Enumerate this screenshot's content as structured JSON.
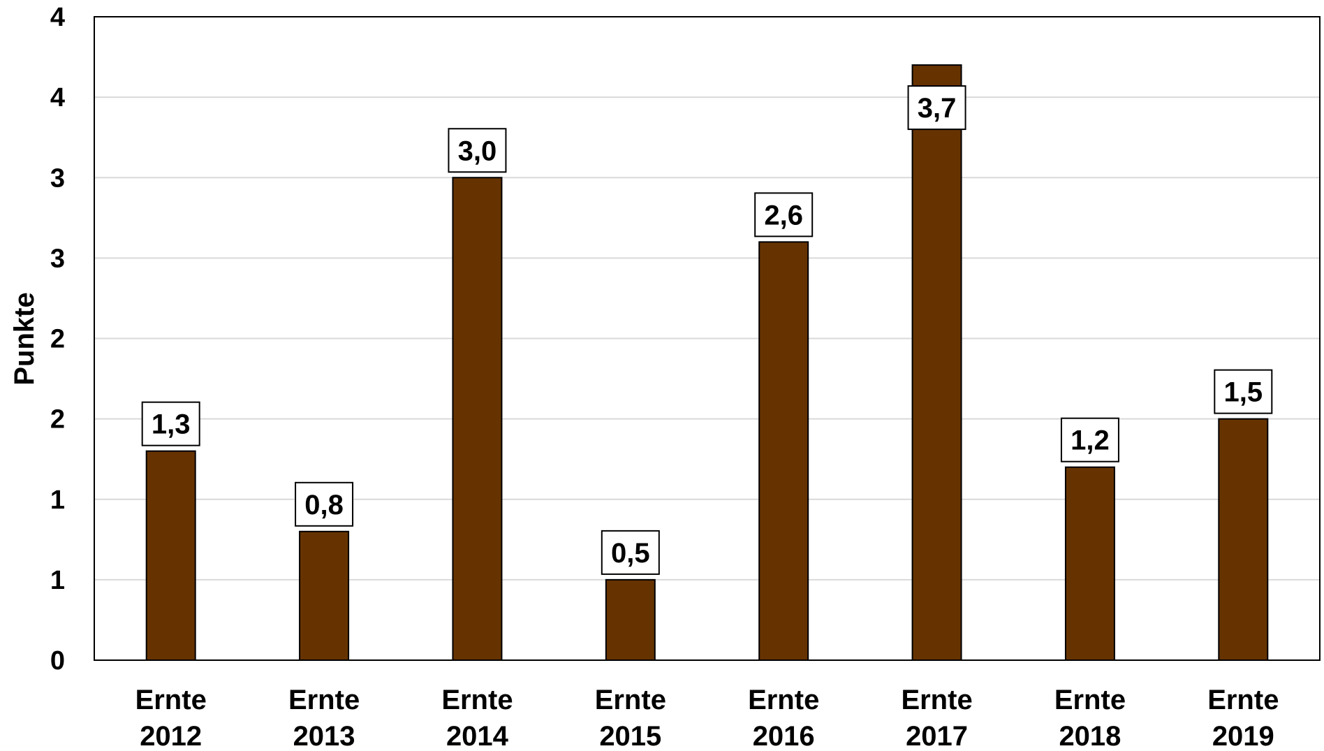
{
  "chart_data": {
    "type": "bar",
    "categories": [
      [
        "Ernte",
        "2012"
      ],
      [
        "Ernte",
        "2013"
      ],
      [
        "Ernte",
        "2014"
      ],
      [
        "Ernte",
        "2015"
      ],
      [
        "Ernte",
        "2016"
      ],
      [
        "Ernte",
        "2017"
      ],
      [
        "Ernte",
        "2018"
      ],
      [
        "Ernte",
        "2019"
      ]
    ],
    "values": [
      1.3,
      0.8,
      3.0,
      0.5,
      2.6,
      3.7,
      1.2,
      1.5
    ],
    "data_labels": [
      "1,3",
      "0,8",
      "3,0",
      "0,5",
      "2,6",
      "3,7",
      "1,2",
      "1,5"
    ],
    "title": "",
    "xlabel": "",
    "ylabel": "Punkte",
    "ylim": [
      0,
      4
    ],
    "y_ticks_values": [
      0,
      0.5,
      1,
      1.5,
      2,
      2.5,
      3,
      3.5,
      4
    ],
    "y_tick_labels": [
      "0",
      "1",
      "1",
      "2",
      "2",
      "3",
      "3",
      "4",
      "4"
    ],
    "grid": true,
    "legend": "none",
    "colors": {
      "bar_fill": "#663300",
      "bar_stroke": "#000000",
      "grid": "#d9d9d9",
      "frame": "#000000",
      "label_box_fill": "#ffffff",
      "label_box_stroke": "#000000"
    }
  }
}
